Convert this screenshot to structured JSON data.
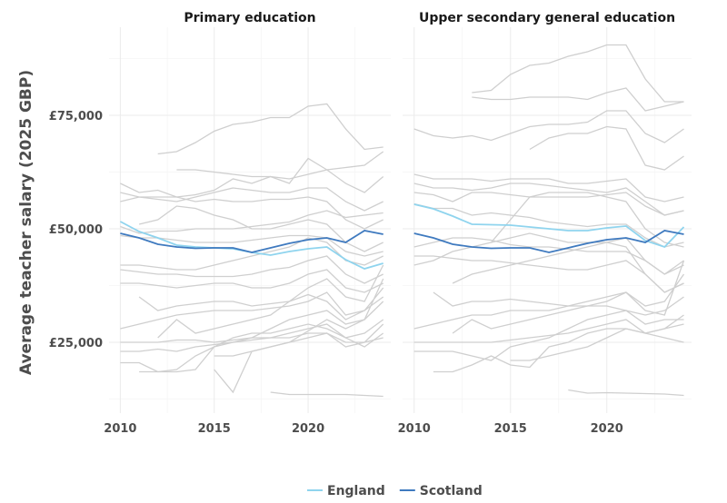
{
  "chart_data": {
    "type": "line",
    "ylabel": "Average teacher salary (2025 GBP)",
    "xlabel": "",
    "value_unit": "thousand GBP",
    "x": [
      2010,
      2011,
      2012,
      2013,
      2014,
      2015,
      2016,
      2017,
      2018,
      2019,
      2020,
      2021,
      2022,
      2023,
      2024
    ],
    "xlim": [
      2009.4,
      2024.4
    ],
    "ylim": [
      9.4,
      94.4
    ],
    "x_ticks": [
      2010,
      2015,
      2020
    ],
    "x_tick_labels": [
      "2010",
      "2015",
      "2020"
    ],
    "y_ticks": [
      25,
      50,
      75
    ],
    "y_tick_labels": [
      "£25,000",
      "£50,000",
      "£75,000"
    ],
    "grid": true,
    "legend": {
      "placement": "bottom",
      "entries": [
        {
          "name": "England",
          "color": "#8fd4ee"
        },
        {
          "name": "Scotland",
          "color": "#3f7abf"
        }
      ]
    },
    "other_color": "#cfcfcf",
    "panels": [
      {
        "title": "Primary education",
        "highlight": [
          {
            "name": "England",
            "values": [
              51.6,
              49.4,
              48.0,
              46.4,
              46.0,
              45.8,
              45.6,
              44.8,
              44.2,
              45.0,
              45.6,
              46.0,
              43.2,
              41.2,
              42.4
            ]
          },
          {
            "name": "Scotland",
            "values": [
              49.0,
              48.0,
              46.6,
              46.0,
              45.7,
              45.8,
              45.8,
              44.8,
              45.8,
              46.8,
              47.6,
              48.0,
              47.0,
              49.6,
              48.8
            ]
          }
        ],
        "others": [
          [
            null,
            null,
            66.5,
            67,
            69,
            71.5,
            73,
            73.5,
            74.5,
            74.5,
            77,
            77.5,
            72,
            67.5,
            68
          ],
          [
            60,
            58,
            58.5,
            57,
            57.5,
            58.5,
            61,
            60,
            61.5,
            60,
            65.5,
            63,
            60,
            58,
            61.5
          ],
          [
            58,
            57,
            56.5,
            56,
            57,
            58,
            59,
            58.5,
            58,
            58,
            59,
            59,
            56,
            54,
            56
          ],
          [
            null,
            null,
            null,
            63,
            63,
            62.5,
            62,
            61.5,
            61.5,
            61,
            62,
            63,
            63.5,
            64,
            67
          ],
          [
            56,
            57,
            57,
            57,
            56,
            56.5,
            56,
            56,
            56.5,
            56.5,
            57,
            56,
            52,
            50,
            52
          ],
          [
            50.5,
            49,
            49.5,
            49.5,
            50,
            50,
            50,
            50.5,
            51,
            51.5,
            53,
            54,
            52.5,
            53,
            53.5
          ],
          [
            null,
            51,
            52,
            55,
            54.5,
            53,
            52,
            50,
            50,
            51,
            52,
            51,
            47,
            45,
            47
          ],
          [
            48.5,
            48,
            48,
            47.5,
            47,
            47,
            47,
            47.5,
            48,
            48.5,
            48.5,
            48,
            45,
            44,
            45
          ],
          [
            42,
            42,
            41.5,
            41,
            41,
            42,
            43,
            44,
            45,
            46,
            48,
            47,
            43,
            42,
            44
          ],
          [
            41,
            40.5,
            40,
            40,
            39.5,
            39.5,
            39.5,
            40,
            41,
            41.5,
            43,
            44,
            40,
            38,
            40
          ],
          [
            38,
            38,
            37.5,
            37,
            37.5,
            38,
            38,
            37,
            37,
            38,
            40,
            41,
            37,
            36,
            38
          ],
          [
            null,
            35,
            32,
            33,
            33.5,
            34,
            34,
            33,
            33.5,
            34,
            35.5,
            34,
            30,
            32,
            35
          ],
          [
            28,
            29,
            30,
            31,
            31.5,
            32,
            32,
            32,
            32.5,
            33,
            34,
            36,
            31,
            32,
            37
          ],
          [
            null,
            null,
            26,
            30,
            27,
            28,
            29,
            30,
            31,
            34,
            37,
            39,
            35,
            34,
            42
          ],
          [
            25,
            25,
            25,
            25.5,
            25.5,
            25,
            25.5,
            26,
            26,
            27,
            28,
            29,
            26,
            27,
            30
          ],
          [
            23,
            23,
            23.5,
            23,
            24,
            24.5,
            25,
            25.5,
            26,
            26,
            27,
            27,
            25,
            25,
            26
          ],
          [
            20.5,
            20.5,
            18.5,
            18.5,
            19,
            24,
            25,
            26,
            28,
            30,
            31,
            32,
            29,
            30,
            34
          ],
          [
            null,
            18.5,
            18.5,
            19,
            22,
            24,
            26,
            27,
            27,
            28,
            29,
            28,
            26,
            24,
            27
          ],
          [
            null,
            null,
            null,
            null,
            null,
            19,
            14,
            23,
            24,
            25,
            26,
            27,
            24,
            25,
            29
          ],
          [
            null,
            null,
            null,
            null,
            null,
            null,
            null,
            null,
            14,
            13.5,
            13.5,
            13.5,
            13.5,
            13.3,
            13.1
          ],
          [
            null,
            null,
            null,
            null,
            null,
            22,
            22,
            23,
            24,
            25,
            27.5,
            30,
            28,
            30,
            39
          ]
        ]
      },
      {
        "title": "Upper secondary general education",
        "highlight": [
          {
            "name": "England",
            "values": [
              55.4,
              54.4,
              52.8,
              51.0,
              50.9,
              50.8,
              50.4,
              50.0,
              49.6,
              49.6,
              50.2,
              50.6,
              47.4,
              46.0,
              50.4
            ]
          },
          {
            "name": "Scotland",
            "values": [
              49.0,
              48.0,
              46.6,
              46.0,
              45.7,
              45.8,
              45.8,
              44.8,
              45.8,
              46.8,
              47.6,
              48.0,
              47.0,
              49.6,
              48.8
            ]
          }
        ],
        "others": [
          [
            null,
            null,
            null,
            80,
            80.5,
            84,
            86,
            86.5,
            88,
            89,
            90.5,
            90.5,
            83,
            78,
            78
          ],
          [
            null,
            null,
            null,
            79,
            78.5,
            78.5,
            79,
            79,
            79,
            78.5,
            80,
            81,
            76,
            77,
            78
          ],
          [
            72,
            70.5,
            70,
            70.5,
            69.5,
            71,
            72.5,
            73,
            73,
            73.5,
            76,
            76,
            71,
            69,
            72
          ],
          [
            null,
            null,
            null,
            null,
            null,
            null,
            67.5,
            70,
            71,
            71,
            72.5,
            72,
            64,
            63,
            66
          ],
          [
            62,
            61,
            61,
            61,
            60.5,
            61,
            61,
            61,
            60,
            60,
            60.5,
            61,
            57,
            56,
            57
          ],
          [
            60,
            59,
            59,
            58.5,
            59,
            60,
            60,
            59.5,
            59,
            58.5,
            58,
            59,
            56,
            53,
            54
          ],
          [
            58,
            57.5,
            56,
            58,
            58,
            57.5,
            57,
            57,
            57,
            57,
            57.5,
            58,
            55,
            53,
            54
          ],
          [
            55.5,
            54.5,
            54.5,
            53,
            53.5,
            53,
            52.5,
            51.5,
            51,
            50.5,
            51,
            51,
            48,
            46,
            47
          ],
          [
            null,
            null,
            null,
            null,
            47,
            52,
            57,
            58,
            58,
            58,
            57,
            56,
            50,
            47,
            46
          ],
          [
            46,
            47,
            48,
            48,
            47.5,
            46.5,
            46,
            46,
            45.5,
            45,
            45,
            45,
            43,
            40,
            42
          ],
          [
            44,
            44,
            43.5,
            43,
            43,
            42.5,
            42,
            41.5,
            41,
            41,
            42,
            43,
            40,
            36,
            38
          ],
          [
            null,
            null,
            38,
            40,
            41,
            42,
            43,
            44,
            45,
            46,
            47,
            48,
            43,
            40,
            43
          ],
          [
            42,
            43,
            45,
            46,
            47,
            48,
            49,
            48,
            47,
            47,
            47,
            46,
            40,
            36,
            38
          ],
          [
            null,
            36,
            33,
            34,
            34,
            34.5,
            34,
            33.5,
            33,
            33,
            33,
            32,
            31,
            32,
            35
          ],
          [
            28,
            29,
            30,
            31,
            31,
            32,
            32,
            32,
            33,
            34,
            35,
            36,
            33,
            34,
            40
          ],
          [
            null,
            null,
            27,
            30,
            28,
            29,
            30,
            31,
            32,
            33,
            34,
            36,
            32,
            31,
            43
          ],
          [
            25,
            25,
            25,
            25,
            25,
            25.5,
            26,
            26.5,
            27,
            28,
            29,
            30,
            27,
            28,
            31
          ],
          [
            23,
            23,
            23,
            22,
            21,
            24,
            25,
            26,
            28,
            30,
            31,
            32,
            29,
            30,
            30
          ],
          [
            null,
            18.5,
            18.5,
            20,
            22,
            20,
            19.5,
            24,
            25,
            27,
            28,
            28,
            27,
            26,
            25
          ],
          [
            null,
            null,
            null,
            null,
            null,
            null,
            null,
            null,
            14.5,
            13.8,
            13.9,
            13.8,
            13.7,
            13.6,
            13.3
          ],
          [
            null,
            null,
            null,
            null,
            null,
            21,
            21,
            22,
            23,
            24,
            26,
            28,
            27,
            28,
            29
          ]
        ]
      }
    ]
  }
}
